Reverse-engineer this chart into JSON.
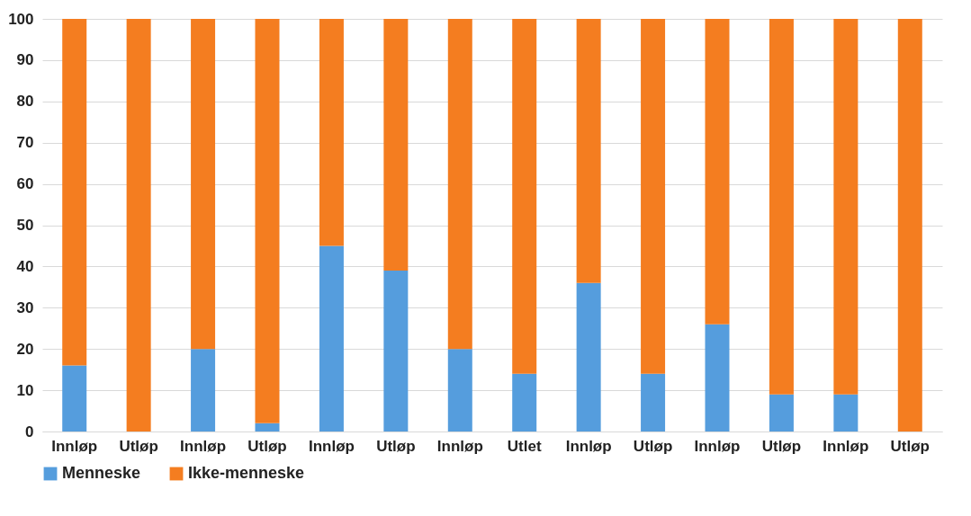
{
  "chart_data": {
    "type": "bar",
    "stacked": true,
    "categories": [
      "Innløp",
      "Utløp",
      "Innløp",
      "Utløp",
      "Innløp",
      "Utløp",
      "Innløp",
      "Utlet",
      "Innløp",
      "Utløp",
      "Innløp",
      "Utløp",
      "Innløp",
      "Utløp"
    ],
    "series": [
      {
        "name": "Menneske",
        "color": "#559ddd",
        "values": [
          16,
          0,
          20,
          2,
          45,
          39,
          20,
          14,
          36,
          14,
          26,
          9,
          9,
          0
        ]
      },
      {
        "name": "Ikke-menneske",
        "color": "#f47d20",
        "values": [
          84,
          100,
          80,
          98,
          55,
          61,
          80,
          86,
          64,
          86,
          74,
          91,
          91,
          100
        ]
      }
    ],
    "ylim": [
      0,
      100
    ],
    "yticks": [
      0,
      10,
      20,
      30,
      40,
      50,
      60,
      70,
      80,
      90,
      100
    ],
    "grid": "y",
    "legend": "bottom"
  }
}
